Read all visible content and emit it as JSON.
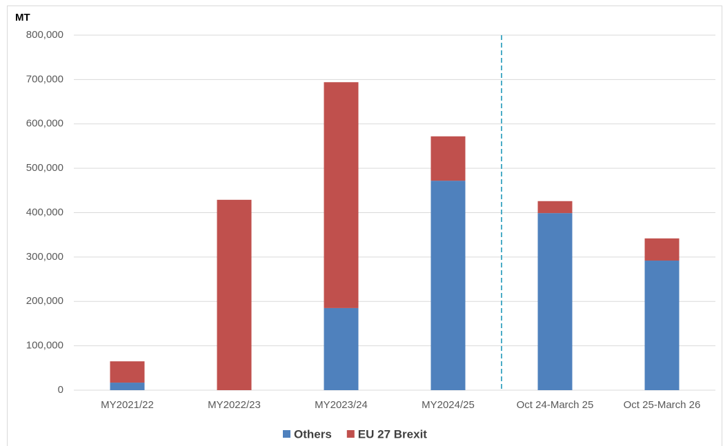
{
  "chart_data": {
    "type": "stacked_bar",
    "y_label": "MT",
    "categories": [
      "MY2021/22",
      "MY2022/23",
      "MY2023/24",
      "MY2024/25",
      "Oct 24-March 25",
      "Oct 25-March 26"
    ],
    "series": [
      {
        "name": "Others",
        "color": "#4f81bd",
        "values": [
          17000,
          0,
          185000,
          472000,
          399000,
          292000
        ]
      },
      {
        "name": "EU 27 Brexit",
        "color": "#c0504d",
        "values": [
          48000,
          429000,
          509000,
          100000,
          27000,
          50000
        ]
      }
    ],
    "ylim": [
      0,
      800000
    ],
    "yticks": [
      0,
      {
        "value": 100000,
        "label": "100,000"
      },
      {
        "value": 200000,
        "label": "200,000"
      },
      {
        "value": 300000,
        "label": "300,000"
      },
      {
        "value": 400000,
        "label": "400,000"
      },
      {
        "value": 500000,
        "label": "500,000"
      },
      {
        "value": 600000,
        "label": "600,000"
      },
      {
        "value": 700000,
        "label": "700,000"
      },
      {
        "value": 800000,
        "label": "800,000"
      }
    ],
    "grid": true,
    "legend": "bottom"
  }
}
